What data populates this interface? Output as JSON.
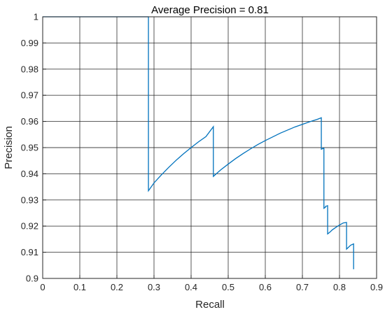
{
  "chart_data": {
    "type": "line",
    "title": "Average Precision = 0.81",
    "xlabel": "Recall",
    "ylabel": "Precision",
    "xlim": [
      0,
      0.9
    ],
    "ylim": [
      0.9,
      1.0
    ],
    "grid": true,
    "xticks": [
      0,
      0.1,
      0.2,
      0.3,
      0.4,
      0.5,
      0.6,
      0.7,
      0.8,
      0.9
    ],
    "xtick_labels": [
      "0",
      "0.1",
      "0.2",
      "0.3",
      "0.4",
      "0.5",
      "0.6",
      "0.7",
      "0.8",
      "0.9"
    ],
    "yticks": [
      0.9,
      0.91,
      0.92,
      0.93,
      0.94,
      0.95,
      0.96,
      0.97,
      0.98,
      0.99,
      1.0
    ],
    "ytick_labels": [
      "0.9",
      "0.91",
      "0.92",
      "0.93",
      "0.94",
      "0.95",
      "0.96",
      "0.97",
      "0.98",
      "0.99",
      "1"
    ],
    "line_color": "#0072BD",
    "series": [
      {
        "x": [
          0,
          0.285,
          0.285,
          0.3,
          0.32,
          0.34,
          0.36,
          0.38,
          0.4,
          0.42,
          0.44,
          0.46,
          0.46,
          0.48,
          0.5,
          0.52,
          0.54,
          0.56,
          0.58,
          0.6,
          0.62,
          0.64,
          0.66,
          0.68,
          0.7,
          0.72,
          0.74,
          0.751,
          0.751,
          0.758,
          0.758,
          0.762,
          0.762,
          0.768,
          0.768,
          0.77,
          0.775,
          0.78,
          0.79,
          0.8,
          0.81,
          0.819,
          0.819,
          0.83,
          0.838,
          0.838
        ],
        "y": [
          1.0,
          1.0,
          0.9335,
          0.9365,
          0.9396,
          0.9425,
          0.9452,
          0.9477,
          0.95,
          0.9522,
          0.9542,
          0.958,
          0.939,
          0.9415,
          0.9437,
          0.9458,
          0.9477,
          0.9495,
          0.9512,
          0.9527,
          0.9541,
          0.9555,
          0.9567,
          0.9579,
          0.9589,
          0.9599,
          0.9608,
          0.9614,
          0.9494,
          0.9498,
          0.9268,
          0.9272,
          0.9275,
          0.9278,
          0.917,
          0.9172,
          0.9178,
          0.9185,
          0.9195,
          0.9204,
          0.9212,
          0.9214,
          0.9112,
          0.9127,
          0.9132,
          0.9035
        ]
      }
    ]
  }
}
